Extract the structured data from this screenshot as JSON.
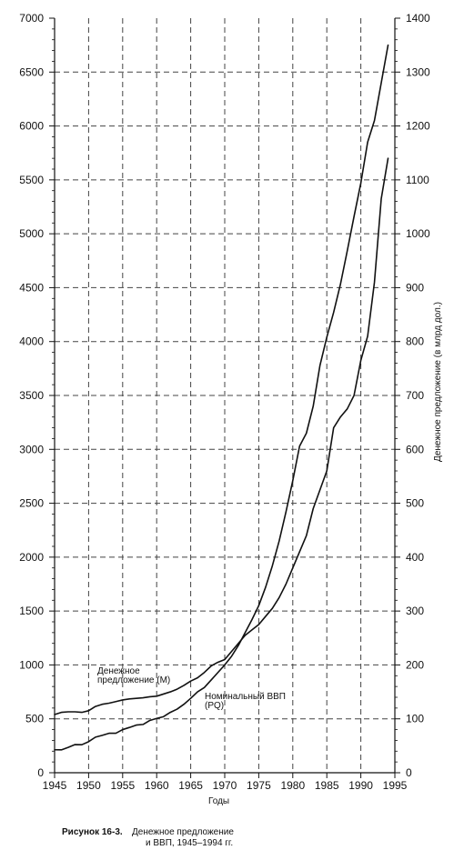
{
  "chart_data": {
    "type": "line",
    "xlabel": "Годы",
    "ylabel_right": "Денежное предложение (в млрд дол.)",
    "xlim": [
      1945,
      1995
    ],
    "ylim_left": [
      0,
      7000
    ],
    "ylim_right": [
      0,
      1400
    ],
    "grid": true,
    "x_ticks": [
      1945,
      1950,
      1955,
      1960,
      1965,
      1970,
      1975,
      1980,
      1985,
      1990,
      1995
    ],
    "x_tick_labels": [
      "1945",
      "1950",
      "1955",
      "1960",
      "1965",
      "1970",
      "1975",
      "1980",
      "1985",
      "1990",
      "1995"
    ],
    "y_left_ticks": [
      0,
      500,
      1000,
      1500,
      2000,
      2500,
      3000,
      3500,
      4000,
      4500,
      5000,
      5500,
      6000,
      6500,
      7000
    ],
    "y_left_tick_labels": [
      "0",
      "500",
      "1000",
      "1500",
      "2000",
      "2500",
      "3000",
      "3500",
      "4000",
      "4500",
      "5000",
      "5500",
      "6000",
      "6500",
      "7000"
    ],
    "y_right_ticks": [
      0,
      100,
      200,
      300,
      400,
      500,
      600,
      700,
      800,
      900,
      1000,
      1100,
      1200,
      1300,
      1400
    ],
    "y_right_tick_labels": [
      "0",
      "100",
      "200",
      "300",
      "400",
      "500",
      "600",
      "700",
      "800",
      "900",
      "1000",
      "1100",
      "1200",
      "1300",
      "1400"
    ],
    "series": [
      {
        "name": "Денежное предложение (M)",
        "axis": "right",
        "x": [
          1945,
          1946,
          1947,
          1948,
          1949,
          1950,
          1951,
          1952,
          1953,
          1954,
          1955,
          1956,
          1957,
          1958,
          1959,
          1960,
          1961,
          1962,
          1963,
          1964,
          1965,
          1966,
          1967,
          1968,
          1969,
          1970,
          1971,
          1972,
          1973,
          1974,
          1975,
          1976,
          1977,
          1978,
          1979,
          1980,
          1981,
          1982,
          1983,
          1984,
          1985,
          1986,
          1987,
          1988,
          1989,
          1990,
          1991,
          1992,
          1993,
          1994
        ],
        "values": [
          108,
          112,
          113,
          113,
          112,
          115,
          123,
          127,
          129,
          132,
          135,
          137,
          138,
          139,
          141,
          142,
          146,
          150,
          155,
          162,
          170,
          176,
          186,
          198,
          205,
          210,
          225,
          240,
          255,
          265,
          275,
          290,
          305,
          325,
          350,
          380,
          410,
          440,
          490,
          525,
          560,
          640,
          660,
          675,
          700,
          765,
          810,
          910,
          1065,
          1140
        ]
      },
      {
        "name": "Номинальный ВВП (PQ)",
        "axis": "left",
        "x": [
          1945,
          1946,
          1947,
          1948,
          1949,
          1950,
          1951,
          1952,
          1953,
          1954,
          1955,
          1956,
          1957,
          1958,
          1959,
          1960,
          1961,
          1962,
          1963,
          1964,
          1965,
          1966,
          1967,
          1968,
          1969,
          1970,
          1971,
          1972,
          1973,
          1974,
          1975,
          1976,
          1977,
          1978,
          1979,
          1980,
          1981,
          1982,
          1983,
          1984,
          1985,
          1986,
          1987,
          1988,
          1989,
          1990,
          1991,
          1992,
          1993,
          1994
        ],
        "values": [
          213,
          212,
          235,
          261,
          260,
          288,
          330,
          347,
          366,
          366,
          400,
          420,
          442,
          448,
          485,
          504,
          520,
          560,
          590,
          635,
          690,
          750,
          790,
          860,
          930,
          1000,
          1080,
          1180,
          1300,
          1420,
          1550,
          1720,
          1920,
          2150,
          2420,
          2710,
          3030,
          3150,
          3400,
          3780,
          4040,
          4270,
          4530,
          4840,
          5160,
          5470,
          5850,
          6050,
          6400,
          6750
        ]
      }
    ],
    "annotations": {
      "money_line1": "Денежное",
      "money_line2": "предложение (M)",
      "gdp_line1": "Номинальный ВВП",
      "gdp_line2": "(PQ)"
    }
  },
  "caption": {
    "label": "Рисунок 16-3.",
    "line1": "Денежное предложение",
    "line2": "и ВВП, 1945–1994 гг."
  }
}
